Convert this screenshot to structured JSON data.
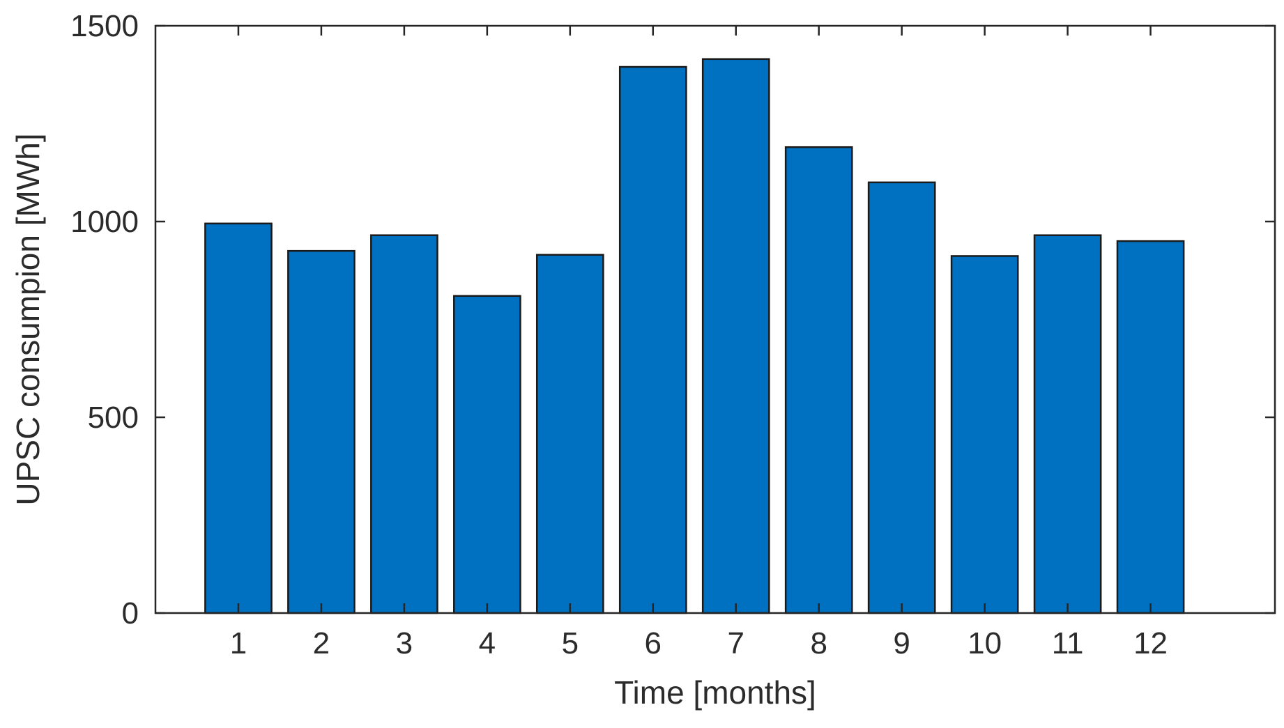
{
  "chart_data": {
    "type": "bar",
    "categories": [
      "1",
      "2",
      "3",
      "4",
      "5",
      "6",
      "7",
      "8",
      "9",
      "10",
      "11",
      "12"
    ],
    "values": [
      995,
      925,
      965,
      810,
      915,
      1395,
      1415,
      1190,
      1100,
      912,
      965,
      950
    ],
    "xlabel": "Time [months]",
    "ylabel": "UPSC consumpion [MWh]",
    "ylim": [
      0,
      1500
    ],
    "yticks": [
      0,
      500,
      1000,
      1500
    ],
    "ytick_labels": [
      "0",
      "500",
      "1000",
      "1500"
    ],
    "grid": false,
    "bar_color": "#0070c0",
    "bar_edge_color": "#1a1a1a"
  }
}
